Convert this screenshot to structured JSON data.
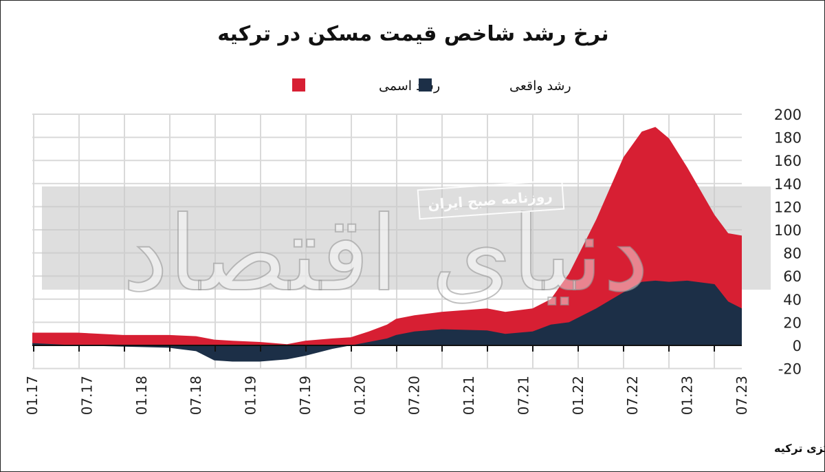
{
  "chart_data": {
    "type": "area",
    "title": "نرخ رشد شاخص قیمت مسکن در ترکیه",
    "xlabel": "",
    "ylabel": "",
    "ylim": [
      -20,
      200
    ],
    "yticks": [
      200,
      180,
      160,
      140,
      120,
      100,
      80,
      60,
      40,
      20,
      0,
      -20
    ],
    "x_unit": "months since 01.17",
    "xlim": [
      0,
      78
    ],
    "xtick_labels": [
      "01.17",
      "07.17",
      "01.18",
      "07.18",
      "01.19",
      "07.19",
      "01.20",
      "07.20",
      "01.21",
      "07.21",
      "01.22",
      "07.22",
      "01.23",
      "07.23"
    ],
    "x": [
      0,
      5,
      10,
      15,
      18,
      20,
      22,
      25,
      28,
      30,
      33,
      35,
      37,
      39,
      40,
      42,
      45,
      50,
      52,
      55,
      57,
      59,
      62,
      65,
      67,
      68.5,
      70,
      72,
      75,
      76.5,
      78
    ],
    "series": [
      {
        "name": "رشد اسمی",
        "color": "#d71f33",
        "values": [
          11,
          11,
          9,
          9,
          8,
          5,
          4,
          3,
          1,
          4,
          6,
          7,
          12,
          18,
          23,
          26,
          29,
          32,
          29,
          32,
          40,
          62,
          109,
          163,
          185,
          189,
          179,
          154,
          113,
          97,
          95
        ]
      },
      {
        "name": "رشد واقعی",
        "color": "#1c2f47",
        "values": [
          2,
          0,
          -1,
          -2,
          -5,
          -13,
          -14,
          -14,
          -12,
          -9,
          -3,
          0,
          3,
          6,
          9,
          12,
          14,
          13,
          10,
          12,
          18,
          20,
          32,
          46,
          55,
          56,
          55,
          56,
          53,
          38,
          32
        ]
      }
    ],
    "grid": true,
    "legend_position": "top-center"
  },
  "watermark": {
    "logo": "دنیای اقتصاد",
    "tagline": "روزنامه صبح ایران"
  },
  "source": "منبع: بانک مرکزی ترکیه"
}
